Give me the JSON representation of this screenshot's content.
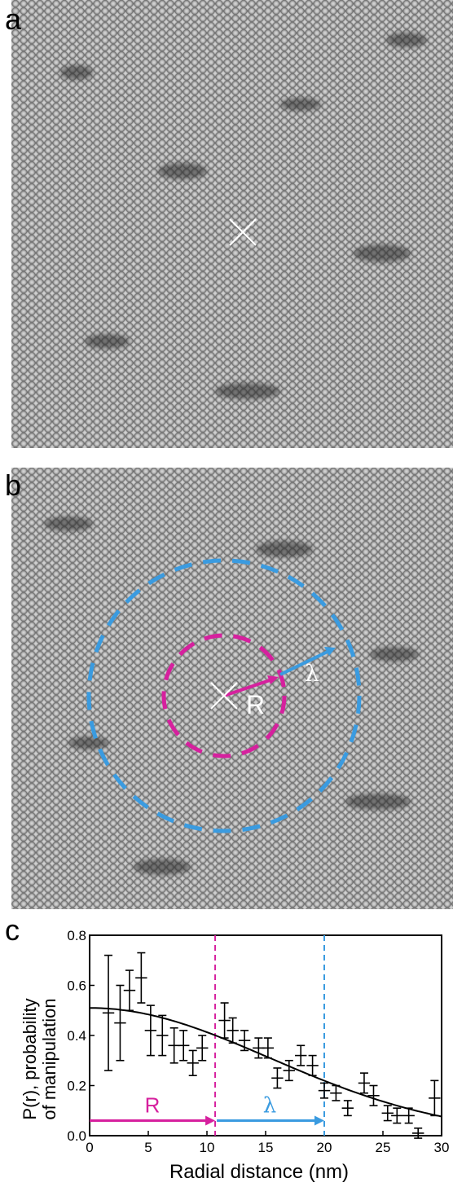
{
  "figure": {
    "panel_a_label": "a",
    "panel_b_label": "b",
    "panel_c_label": "c",
    "panel_b_R_label": "R",
    "panel_b_lambda_label": "λ",
    "colors": {
      "magenta": "#d6209e",
      "blue": "#3a9be0",
      "white": "#ffffff"
    }
  },
  "chart_data": {
    "type": "scatter",
    "xlabel": "Radial distance (nm)",
    "ylabel_line1": "P(r), probability",
    "ylabel_line2": "of manipulation",
    "xlim": [
      0,
      30
    ],
    "ylim": [
      0,
      0.8
    ],
    "xticks": [
      "0",
      "5",
      "10",
      "15",
      "20",
      "25",
      "30"
    ],
    "yticks": [
      "0.0",
      "0.2",
      "0.4",
      "0.6",
      "0.8"
    ],
    "R_value": 10.7,
    "lambda_end": 20,
    "R_label": "R",
    "lambda_label": "λ",
    "points": [
      {
        "x": 1.6,
        "y": 0.49,
        "yerr": 0.23,
        "xerr": 0.5
      },
      {
        "x": 2.6,
        "y": 0.45,
        "yerr": 0.15,
        "xerr": 0.5
      },
      {
        "x": 3.4,
        "y": 0.58,
        "yerr": 0.08,
        "xerr": 0.5
      },
      {
        "x": 4.4,
        "y": 0.63,
        "yerr": 0.1,
        "xerr": 0.5
      },
      {
        "x": 5.2,
        "y": 0.42,
        "yerr": 0.1,
        "xerr": 0.5
      },
      {
        "x": 6.2,
        "y": 0.4,
        "yerr": 0.08,
        "xerr": 0.5
      },
      {
        "x": 7.2,
        "y": 0.36,
        "yerr": 0.07,
        "xerr": 0.5
      },
      {
        "x": 8.0,
        "y": 0.36,
        "yerr": 0.06,
        "xerr": 0.5
      },
      {
        "x": 8.8,
        "y": 0.29,
        "yerr": 0.05,
        "xerr": 0.5
      },
      {
        "x": 9.6,
        "y": 0.35,
        "yerr": 0.05,
        "xerr": 0.5
      },
      {
        "x": 11.5,
        "y": 0.46,
        "yerr": 0.07,
        "xerr": 0.5
      },
      {
        "x": 12.2,
        "y": 0.42,
        "yerr": 0.05,
        "xerr": 0.5
      },
      {
        "x": 13.2,
        "y": 0.38,
        "yerr": 0.04,
        "xerr": 0.5
      },
      {
        "x": 14.4,
        "y": 0.35,
        "yerr": 0.04,
        "xerr": 0.5
      },
      {
        "x": 15.2,
        "y": 0.35,
        "yerr": 0.04,
        "xerr": 0.5
      },
      {
        "x": 16.0,
        "y": 0.23,
        "yerr": 0.04,
        "xerr": 0.5
      },
      {
        "x": 17.0,
        "y": 0.26,
        "yerr": 0.04,
        "xerr": 0.5
      },
      {
        "x": 18.0,
        "y": 0.32,
        "yerr": 0.04,
        "xerr": 0.5
      },
      {
        "x": 19.0,
        "y": 0.28,
        "yerr": 0.04,
        "xerr": 0.5
      },
      {
        "x": 20.0,
        "y": 0.18,
        "yerr": 0.03,
        "xerr": 0.5
      },
      {
        "x": 21.0,
        "y": 0.17,
        "yerr": 0.03,
        "xerr": 0.5
      },
      {
        "x": 22.0,
        "y": 0.11,
        "yerr": 0.03,
        "xerr": 0.5
      },
      {
        "x": 23.4,
        "y": 0.21,
        "yerr": 0.04,
        "xerr": 0.5
      },
      {
        "x": 24.2,
        "y": 0.16,
        "yerr": 0.04,
        "xerr": 0.5
      },
      {
        "x": 25.4,
        "y": 0.09,
        "yerr": 0.03,
        "xerr": 0.5
      },
      {
        "x": 26.2,
        "y": 0.08,
        "yerr": 0.03,
        "xerr": 0.5
      },
      {
        "x": 27.2,
        "y": 0.08,
        "yerr": 0.03,
        "xerr": 0.5
      },
      {
        "x": 28.0,
        "y": 0.01,
        "yerr": 0.02,
        "xerr": 0.5
      },
      {
        "x": 29.4,
        "y": 0.15,
        "yerr": 0.07,
        "xerr": 0.5
      }
    ],
    "fit": {
      "amplitude": 0.51,
      "sigma": 15.4,
      "offset": 0.0
    }
  }
}
